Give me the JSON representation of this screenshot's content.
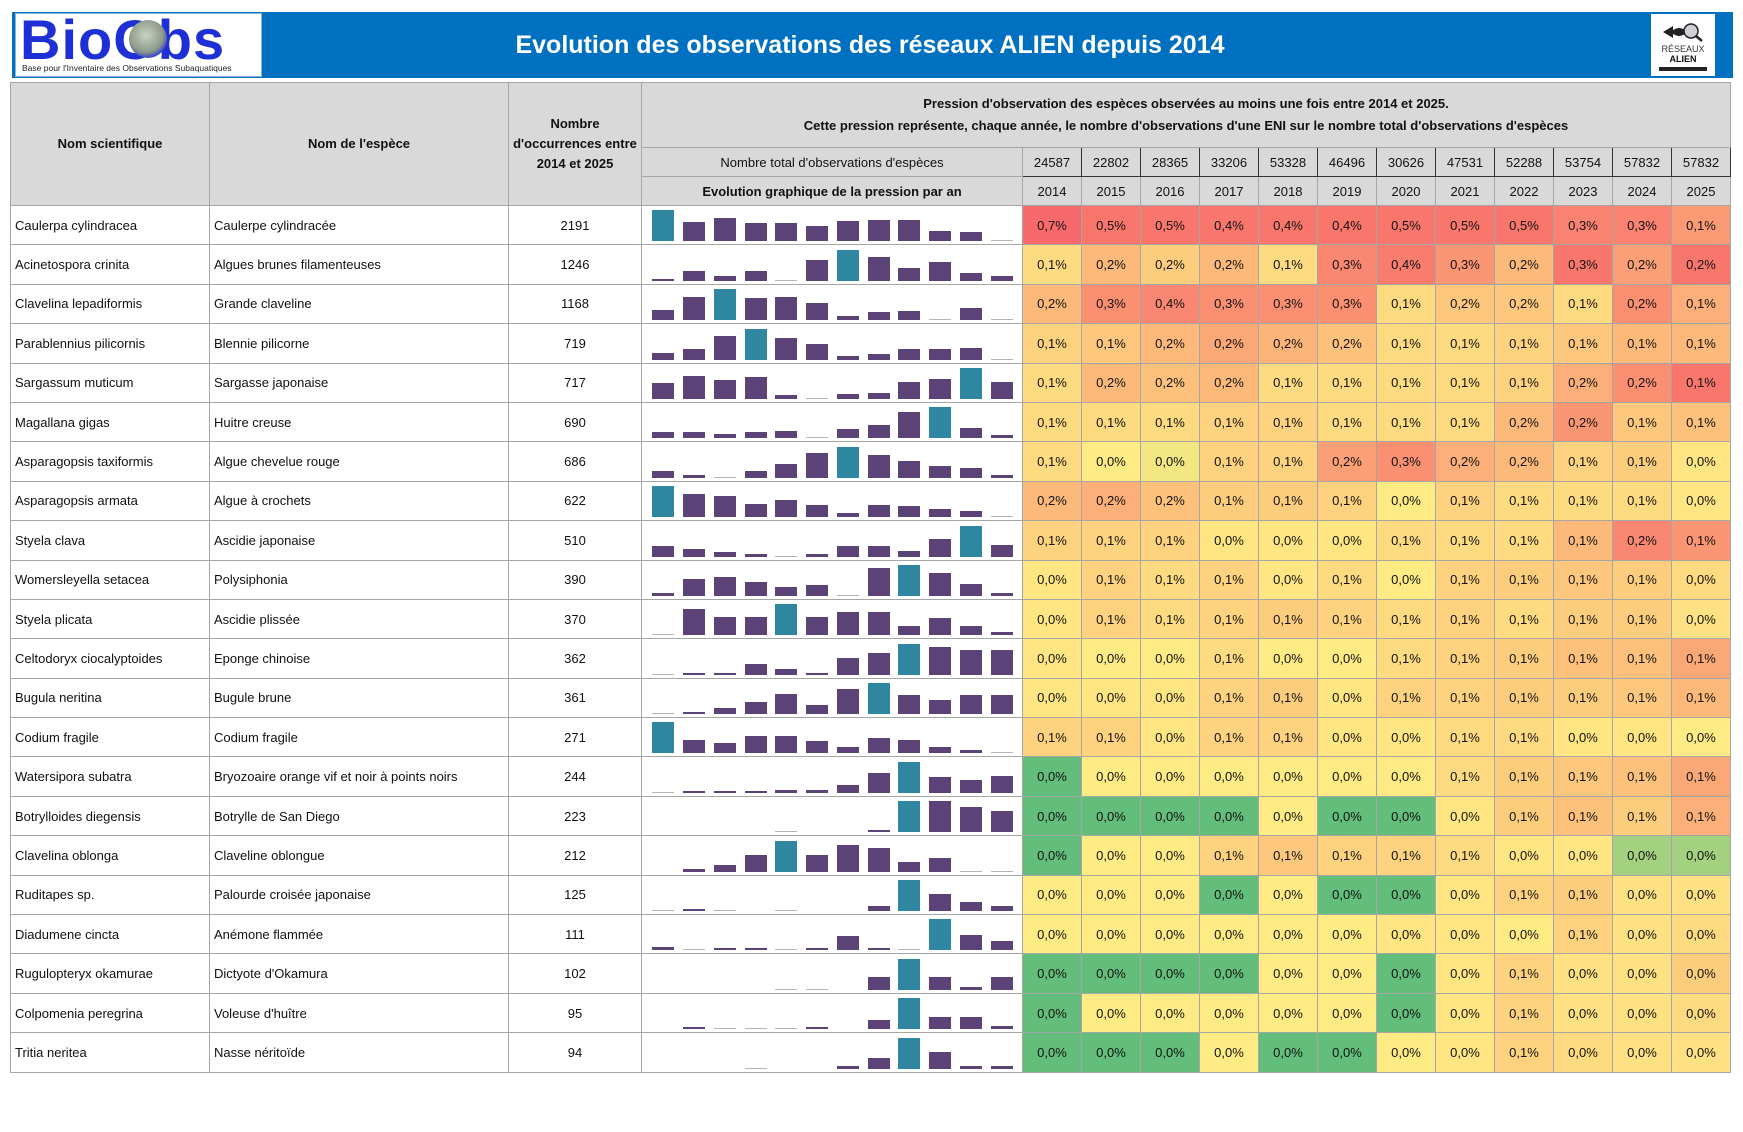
{
  "header": {
    "logo_left_text": "BioObs",
    "logo_left_subtitle": "Base pour l'Inventaire des Observations Subaquatiques",
    "title": "Evolution des observations des réseaux ALIEN depuis 2014",
    "logo_right_line1": "RÉSEAUX",
    "logo_right_line2": "ALIEN"
  },
  "columns": {
    "scientific": "Nom scientifique",
    "common": "Nom de l'espèce",
    "occurrences": "Nombre d'occurrences entre 2014 et 2025",
    "pressure_title_1": "Pression d'observation des espèces observées au moins une fois entre 2014 et 2025.",
    "pressure_title_2": "Cette pression représente, chaque année, le nombre d'observations d'une ENI sur le nombre total d'observations d'espèces",
    "total_label": "Nombre total d'observations d'espèces",
    "spark_label": "Evolution graphique de la pression par an"
  },
  "colors": {
    "banner": "#0070c0",
    "spark_bar": "#5b4378",
    "spark_max": "#2e86a0",
    "heat_low": "#63be7b",
    "heat_mid": "#ffeb84",
    "heat_high": "#f8696b"
  },
  "chart_data": {
    "type": "heatmap",
    "title": "Evolution des observations des réseaux ALIEN depuis 2014",
    "years": [
      "2014",
      "2015",
      "2016",
      "2017",
      "2018",
      "2019",
      "2020",
      "2021",
      "2022",
      "2023",
      "2024",
      "2025"
    ],
    "totals": [
      "24587",
      "22802",
      "28365",
      "33206",
      "53328",
      "46496",
      "30626",
      "47531",
      "52288",
      "53754",
      "57832",
      "57832"
    ],
    "value_unit": "percent",
    "rows": [
      {
        "sci": "Caulerpa cylindracea",
        "common": "Caulerpe cylindracée",
        "occ": "2191",
        "pct": [
          "0,7%",
          "0,5%",
          "0,5%",
          "0,4%",
          "0,4%",
          "0,4%",
          "0,5%",
          "0,5%",
          "0,5%",
          "0,3%",
          "0,3%",
          "0,1%"
        ],
        "heat": [
          1.0,
          0.95,
          0.95,
          0.95,
          0.95,
          0.95,
          0.95,
          0.95,
          0.95,
          0.9,
          0.9,
          0.8
        ],
        "spark": [
          1.0,
          0.62,
          0.74,
          0.58,
          0.58,
          0.5,
          0.65,
          0.7,
          0.68,
          0.35,
          0.3,
          0
        ]
      },
      {
        "sci": "Acinetospora crinita",
        "common": "Algues brunes filamenteuses",
        "occ": "1246",
        "pct": [
          "0,1%",
          "0,2%",
          "0,2%",
          "0,2%",
          "0,1%",
          "0,3%",
          "0,4%",
          "0,3%",
          "0,2%",
          "0,3%",
          "0,2%",
          "0,2%"
        ],
        "heat": [
          0.55,
          0.68,
          0.6,
          0.68,
          0.55,
          0.88,
          0.92,
          0.82,
          0.68,
          0.95,
          0.78,
          0.95
        ],
        "spark": [
          0.03,
          0.3,
          0.15,
          0.33,
          0,
          0.68,
          1.0,
          0.78,
          0.4,
          0.62,
          0.25,
          0.15
        ]
      },
      {
        "sci": "Clavelina lepadiformis",
        "common": "Grande claveline",
        "occ": "1168",
        "pct": [
          "0,2%",
          "0,3%",
          "0,4%",
          "0,3%",
          "0,3%",
          "0,3%",
          "0,1%",
          "0,2%",
          "0,2%",
          "0,1%",
          "0,2%",
          "0,1%"
        ],
        "heat": [
          0.68,
          0.85,
          0.88,
          0.85,
          0.85,
          0.85,
          0.55,
          0.62,
          0.62,
          0.55,
          0.85,
          0.72
        ],
        "spark": [
          0.33,
          0.75,
          1.0,
          0.72,
          0.75,
          0.55,
          0.15,
          0.25,
          0.29,
          0,
          0.4,
          0
        ]
      },
      {
        "sci": "Parablennius pilicornis",
        "common": "Blennie pilicorne",
        "occ": "719",
        "pct": [
          "0,1%",
          "0,1%",
          "0,2%",
          "0,2%",
          "0,2%",
          "0,2%",
          "0,1%",
          "0,1%",
          "0,1%",
          "0,1%",
          "0,1%",
          "0,1%"
        ],
        "heat": [
          0.58,
          0.62,
          0.68,
          0.75,
          0.7,
          0.65,
          0.55,
          0.55,
          0.58,
          0.62,
          0.68,
          0.68
        ],
        "spark": [
          0.2,
          0.35,
          0.75,
          1.0,
          0.7,
          0.5,
          0.13,
          0.17,
          0.33,
          0.33,
          0.38,
          0
        ]
      },
      {
        "sci": "Sargassum muticum",
        "common": "Sargasse japonaise",
        "occ": "717",
        "pct": [
          "0,1%",
          "0,2%",
          "0,2%",
          "0,2%",
          "0,1%",
          "0,1%",
          "0,1%",
          "0,1%",
          "0,1%",
          "0,2%",
          "0,2%",
          "0,1%"
        ],
        "heat": [
          0.55,
          0.68,
          0.65,
          0.68,
          0.55,
          0.55,
          0.55,
          0.55,
          0.58,
          0.72,
          0.85,
          0.95
        ],
        "spark": [
          0.5,
          0.75,
          0.6,
          0.7,
          0.12,
          0,
          0.15,
          0.18,
          0.55,
          0.65,
          1.0,
          0.55
        ]
      },
      {
        "sci": "Magallana gigas",
        "common": "Huitre creuse",
        "occ": "690",
        "pct": [
          "0,1%",
          "0,1%",
          "0,1%",
          "0,1%",
          "0,1%",
          "0,1%",
          "0,1%",
          "0,1%",
          "0,2%",
          "0,2%",
          "0,1%",
          "0,1%"
        ],
        "heat": [
          0.55,
          0.55,
          0.55,
          0.58,
          0.58,
          0.55,
          0.55,
          0.55,
          0.68,
          0.82,
          0.62,
          0.65
        ],
        "spark": [
          0.2,
          0.2,
          0.15,
          0.22,
          0.25,
          0,
          0.3,
          0.42,
          0.85,
          1.0,
          0.32,
          0.1
        ]
      },
      {
        "sci": "Asparagopsis taxiformis",
        "common": "Algue chevelue rouge",
        "occ": "686",
        "pct": [
          "0,1%",
          "0,0%",
          "0,0%",
          "0,1%",
          "0,1%",
          "0,2%",
          "0,3%",
          "0,2%",
          "0,2%",
          "0,1%",
          "0,1%",
          "0,0%"
        ],
        "heat": [
          0.55,
          0.48,
          0.44,
          0.58,
          0.58,
          0.78,
          0.85,
          0.72,
          0.68,
          0.58,
          0.6,
          0.5
        ],
        "spark": [
          0.22,
          0.1,
          0,
          0.22,
          0.45,
          0.8,
          1.0,
          0.72,
          0.55,
          0.38,
          0.3,
          0.1
        ]
      },
      {
        "sci": "Asparagopsis armata",
        "common": "Algue à crochets",
        "occ": "622",
        "pct": [
          "0,2%",
          "0,2%",
          "0,2%",
          "0,1%",
          "0,1%",
          "0,1%",
          "0,0%",
          "0,1%",
          "0,1%",
          "0,1%",
          "0,1%",
          "0,0%"
        ],
        "heat": [
          0.68,
          0.72,
          0.65,
          0.6,
          0.6,
          0.58,
          0.48,
          0.58,
          0.55,
          0.55,
          0.55,
          0.5
        ],
        "spark": [
          1.0,
          0.75,
          0.68,
          0.42,
          0.55,
          0.4,
          0.12,
          0.4,
          0.35,
          0.25,
          0.2,
          0
        ]
      },
      {
        "sci": "Styela clava",
        "common": "Ascidie japonaise",
        "occ": "510",
        "pct": [
          "0,1%",
          "0,1%",
          "0,1%",
          "0,0%",
          "0,0%",
          "0,0%",
          "0,1%",
          "0,1%",
          "0,1%",
          "0,1%",
          "0,2%",
          "0,1%"
        ],
        "heat": [
          0.58,
          0.58,
          0.58,
          0.5,
          0.5,
          0.5,
          0.55,
          0.55,
          0.55,
          0.68,
          0.88,
          0.82
        ],
        "spark": [
          0.33,
          0.25,
          0.15,
          0.08,
          0,
          0.08,
          0.33,
          0.35,
          0.18,
          0.55,
          1.0,
          0.38
        ]
      },
      {
        "sci": "Womersleyella setacea",
        "common": "Polysiphonia",
        "occ": "390",
        "pct": [
          "0,0%",
          "0,1%",
          "0,1%",
          "0,1%",
          "0,0%",
          "0,1%",
          "0,0%",
          "0,1%",
          "0,1%",
          "0,1%",
          "0,1%",
          "0,0%"
        ],
        "heat": [
          0.5,
          0.58,
          0.55,
          0.58,
          0.5,
          0.55,
          0.48,
          0.58,
          0.6,
          0.62,
          0.6,
          0.55
        ],
        "spark": [
          0.08,
          0.55,
          0.6,
          0.45,
          0.3,
          0.35,
          0,
          0.9,
          1.0,
          0.75,
          0.4,
          0.1
        ]
      },
      {
        "sci": "Styela plicata",
        "common": "Ascidie plissée",
        "occ": "370",
        "pct": [
          "0,0%",
          "0,1%",
          "0,1%",
          "0,1%",
          "0,1%",
          "0,1%",
          "0,1%",
          "0,1%",
          "0,1%",
          "0,1%",
          "0,1%",
          "0,0%"
        ],
        "heat": [
          0.5,
          0.58,
          0.55,
          0.58,
          0.6,
          0.58,
          0.55,
          0.58,
          0.55,
          0.6,
          0.6,
          0.52
        ],
        "spark": [
          0,
          0.85,
          0.6,
          0.6,
          1.0,
          0.6,
          0.75,
          0.75,
          0.3,
          0.55,
          0.3,
          0.1
        ]
      },
      {
        "sci": "Celtodoryx ciocalyptoides",
        "common": "Eponge chinoise",
        "occ": "362",
        "pct": [
          "0,0%",
          "0,0%",
          "0,0%",
          "0,1%",
          "0,0%",
          "0,0%",
          "0,1%",
          "0,1%",
          "0,1%",
          "0,1%",
          "0,1%",
          "0,1%"
        ],
        "heat": [
          0.5,
          0.48,
          0.48,
          0.55,
          0.48,
          0.48,
          0.55,
          0.58,
          0.6,
          0.65,
          0.65,
          0.75
        ],
        "spark": [
          0,
          0.05,
          0.05,
          0.35,
          0.2,
          0.05,
          0.55,
          0.7,
          1.0,
          0.9,
          0.8,
          0.8
        ]
      },
      {
        "sci": "Bugula neritina",
        "common": "Bugule brune",
        "occ": "361",
        "pct": [
          "0,0%",
          "0,0%",
          "0,0%",
          "0,1%",
          "0,1%",
          "0,0%",
          "0,1%",
          "0,1%",
          "0,1%",
          "0,1%",
          "0,1%",
          "0,1%"
        ],
        "heat": [
          0.5,
          0.5,
          0.5,
          0.58,
          0.6,
          0.5,
          0.58,
          0.58,
          0.6,
          0.6,
          0.62,
          0.68
        ],
        "spark": [
          0,
          0.05,
          0.2,
          0.4,
          0.65,
          0.3,
          0.8,
          1.0,
          0.6,
          0.45,
          0.6,
          0.6
        ]
      },
      {
        "sci": "Codium fragile",
        "common": "Codium fragile",
        "occ": "271",
        "pct": [
          "0,1%",
          "0,1%",
          "0,0%",
          "0,1%",
          "0,1%",
          "0,0%",
          "0,0%",
          "0,1%",
          "0,1%",
          "0,0%",
          "0,0%",
          "0,0%"
        ],
        "heat": [
          0.58,
          0.58,
          0.5,
          0.58,
          0.58,
          0.5,
          0.5,
          0.55,
          0.55,
          0.5,
          0.5,
          0.48
        ],
        "spark": [
          1.0,
          0.45,
          0.35,
          0.55,
          0.55,
          0.4,
          0.2,
          0.5,
          0.45,
          0.2,
          0.1,
          0
        ]
      },
      {
        "sci": "Watersipora subatra",
        "common": "Bryozoaire orange vif et noir à points noirs",
        "occ": "244",
        "pct": [
          "0,0%",
          "0,0%",
          "0,0%",
          "0,0%",
          "0,0%",
          "0,0%",
          "0,0%",
          "0,1%",
          "0,1%",
          "0,1%",
          "0,1%",
          "0,1%"
        ],
        "heat": [
          0.0,
          0.48,
          0.48,
          0.48,
          0.48,
          0.48,
          0.48,
          0.55,
          0.6,
          0.62,
          0.65,
          0.75
        ],
        "spark": [
          0,
          0.05,
          0.05,
          0.05,
          0.08,
          0.08,
          0.25,
          0.65,
          1.0,
          0.5,
          0.4,
          0.55
        ]
      },
      {
        "sci": "Botrylloides diegensis",
        "common": "Botrylle de San Diego",
        "occ": "223",
        "pct": [
          "0,0%",
          "0,0%",
          "0,0%",
          "0,0%",
          "0,0%",
          "0,0%",
          "0,0%",
          "0,0%",
          "0,1%",
          "0,1%",
          "0,1%",
          "0,1%"
        ],
        "heat": [
          0.0,
          0.0,
          0.0,
          0.0,
          0.48,
          0.0,
          0.0,
          0.5,
          0.6,
          0.65,
          0.6,
          0.72
        ],
        "spark": [
          null,
          null,
          null,
          null,
          0,
          null,
          null,
          0.05,
          1.0,
          1.0,
          0.8,
          0.7
        ]
      },
      {
        "sci": "Clavelina oblonga",
        "common": "Claveline oblongue",
        "occ": "212",
        "pct": [
          "0,0%",
          "0,0%",
          "0,0%",
          "0,1%",
          "0,1%",
          "0,1%",
          "0,1%",
          "0,1%",
          "0,0%",
          "0,0%",
          "0,0%",
          "0,0%"
        ],
        "heat": [
          0.0,
          0.48,
          0.48,
          0.58,
          0.62,
          0.58,
          0.58,
          0.55,
          0.5,
          0.5,
          0.2,
          0.2
        ],
        "spark": [
          null,
          0.08,
          0.2,
          0.55,
          1.0,
          0.55,
          0.85,
          0.75,
          0.3,
          0.45,
          0,
          0
        ]
      },
      {
        "sci": "Ruditapes sp.",
        "common": "Palourde croisée japonaise",
        "occ": "125",
        "pct": [
          "0,0%",
          "0,0%",
          "0,0%",
          "0,0%",
          "0,0%",
          "0,0%",
          "0,0%",
          "0,0%",
          "0,1%",
          "0,1%",
          "0,0%",
          "0,0%"
        ],
        "heat": [
          0.48,
          0.48,
          0.48,
          0.0,
          0.48,
          0.0,
          0.0,
          0.5,
          0.58,
          0.6,
          0.52,
          0.52
        ],
        "spark": [
          0,
          0.05,
          0,
          null,
          0,
          null,
          null,
          0.15,
          1.0,
          0.55,
          0.3,
          0.15
        ]
      },
      {
        "sci": "Diadumene cincta",
        "common": "Anémone flammée",
        "occ": "111",
        "pct": [
          "0,0%",
          "0,0%",
          "0,0%",
          "0,0%",
          "0,0%",
          "0,0%",
          "0,0%",
          "0,0%",
          "0,0%",
          "0,1%",
          "0,0%",
          "0,0%"
        ],
        "heat": [
          0.48,
          0.48,
          0.48,
          0.48,
          0.48,
          0.48,
          0.5,
          0.5,
          0.48,
          0.58,
          0.52,
          0.55
        ],
        "spark": [
          0.1,
          0,
          0.05,
          0.08,
          0,
          0.05,
          0.45,
          0.08,
          0,
          1.0,
          0.5,
          0.3
        ]
      },
      {
        "sci": "Rugulopteryx okamurae",
        "common": "Dictyote d'Okamura",
        "occ": "102",
        "pct": [
          "0,0%",
          "0,0%",
          "0,0%",
          "0,0%",
          "0,0%",
          "0,0%",
          "0,0%",
          "0,0%",
          "0,1%",
          "0,0%",
          "0,0%",
          "0,0%"
        ],
        "heat": [
          0.0,
          0.0,
          0.0,
          0.0,
          0.48,
          0.48,
          0.0,
          0.5,
          0.58,
          0.52,
          0.52,
          0.6
        ],
        "spark": [
          null,
          null,
          null,
          null,
          0,
          0,
          null,
          0.4,
          1.0,
          0.4,
          0.1,
          0.4
        ]
      },
      {
        "sci": "Colpomenia peregrina",
        "common": "Voleuse d'huître",
        "occ": "95",
        "pct": [
          "0,0%",
          "0,0%",
          "0,0%",
          "0,0%",
          "0,0%",
          "0,0%",
          "0,0%",
          "0,0%",
          "0,1%",
          "0,0%",
          "0,0%",
          "0,0%"
        ],
        "heat": [
          0.0,
          0.48,
          0.48,
          0.48,
          0.48,
          0.48,
          0.0,
          0.5,
          0.58,
          0.52,
          0.52,
          0.55
        ],
        "spark": [
          null,
          0.05,
          0,
          0,
          0,
          0.05,
          null,
          0.3,
          1.0,
          0.4,
          0.4,
          0.1
        ]
      },
      {
        "sci": "Tritia neritea",
        "common": "Nasse néritoïde",
        "occ": "94",
        "pct": [
          "0,0%",
          "0,0%",
          "0,0%",
          "0,0%",
          "0,0%",
          "0,0%",
          "0,0%",
          "0,0%",
          "0,1%",
          "0,0%",
          "0,0%",
          "0,0%"
        ],
        "heat": [
          0.0,
          0.0,
          0.0,
          0.48,
          0.0,
          0.0,
          0.48,
          0.5,
          0.58,
          0.55,
          0.52,
          0.52
        ],
        "spark": [
          null,
          null,
          null,
          0,
          null,
          null,
          0.1,
          0.35,
          1.0,
          0.55,
          0.1,
          0.1
        ]
      }
    ]
  }
}
